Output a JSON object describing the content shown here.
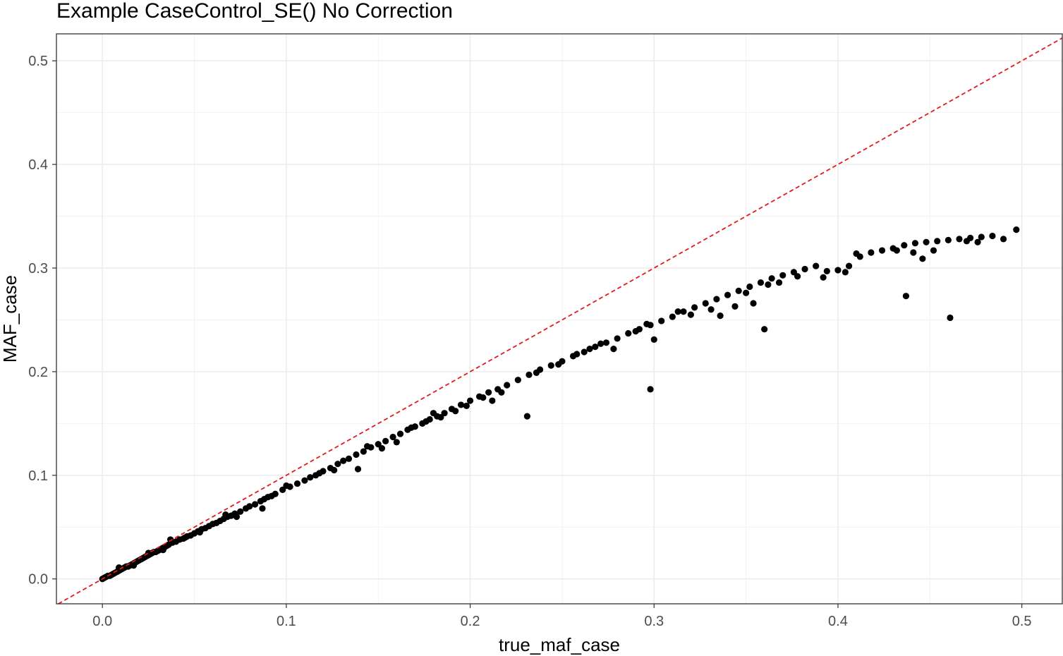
{
  "chart_data": {
    "type": "scatter",
    "title": "Example CaseControl_SE() No Correction",
    "xlabel": "true_maf_case",
    "ylabel": "MAF_case",
    "xlim": [
      -0.025,
      0.522
    ],
    "ylim": [
      -0.024,
      0.526
    ],
    "x_ticks": [
      0.0,
      0.1,
      0.2,
      0.3,
      0.4,
      0.5
    ],
    "x_tick_labels": [
      "0.0",
      "0.1",
      "0.2",
      "0.3",
      "0.4",
      "0.5"
    ],
    "y_ticks": [
      0.0,
      0.1,
      0.2,
      0.3,
      0.4,
      0.5
    ],
    "y_tick_labels": [
      "0.0",
      "0.1",
      "0.2",
      "0.3",
      "0.4",
      "0.5"
    ],
    "grid": true,
    "theme": "bw",
    "reference_line": {
      "type": "identity",
      "slope": 1,
      "intercept": 0,
      "style": "dashed",
      "color": "#e41a1c"
    },
    "point_color": "#000000",
    "points": [
      [
        0.0,
        0.0
      ],
      [
        0.001,
        0.001
      ],
      [
        0.002,
        0.002
      ],
      [
        0.003,
        0.003
      ],
      [
        0.004,
        0.003
      ],
      [
        0.005,
        0.004
      ],
      [
        0.006,
        0.005
      ],
      [
        0.007,
        0.006
      ],
      [
        0.008,
        0.007
      ],
      [
        0.009,
        0.008
      ],
      [
        0.01,
        0.009
      ],
      [
        0.011,
        0.01
      ],
      [
        0.012,
        0.011
      ],
      [
        0.013,
        0.012
      ],
      [
        0.014,
        0.012
      ],
      [
        0.015,
        0.013
      ],
      [
        0.016,
        0.014
      ],
      [
        0.017,
        0.015
      ],
      [
        0.018,
        0.016
      ],
      [
        0.019,
        0.017
      ],
      [
        0.02,
        0.018
      ],
      [
        0.021,
        0.019
      ],
      [
        0.022,
        0.02
      ],
      [
        0.023,
        0.021
      ],
      [
        0.024,
        0.022
      ],
      [
        0.025,
        0.023
      ],
      [
        0.026,
        0.024
      ],
      [
        0.027,
        0.025
      ],
      [
        0.028,
        0.026
      ],
      [
        0.029,
        0.026
      ],
      [
        0.03,
        0.027
      ],
      [
        0.031,
        0.028
      ],
      [
        0.032,
        0.029
      ],
      [
        0.033,
        0.03
      ],
      [
        0.034,
        0.031
      ],
      [
        0.035,
        0.032
      ],
      [
        0.036,
        0.033
      ],
      [
        0.038,
        0.035
      ],
      [
        0.04,
        0.036
      ],
      [
        0.042,
        0.038
      ],
      [
        0.044,
        0.039
      ],
      [
        0.046,
        0.041
      ],
      [
        0.048,
        0.042
      ],
      [
        0.05,
        0.044
      ],
      [
        0.052,
        0.046
      ],
      [
        0.054,
        0.048
      ],
      [
        0.056,
        0.049
      ],
      [
        0.058,
        0.051
      ],
      [
        0.06,
        0.053
      ],
      [
        0.062,
        0.054
      ],
      [
        0.064,
        0.056
      ],
      [
        0.066,
        0.058
      ],
      [
        0.068,
        0.06
      ],
      [
        0.07,
        0.061
      ],
      [
        0.072,
        0.063
      ],
      [
        0.075,
        0.065
      ],
      [
        0.078,
        0.068
      ],
      [
        0.08,
        0.07
      ],
      [
        0.083,
        0.072
      ],
      [
        0.086,
        0.075
      ],
      [
        0.088,
        0.077
      ],
      [
        0.09,
        0.079
      ],
      [
        0.094,
        0.082
      ],
      [
        0.098,
        0.086
      ],
      [
        0.102,
        0.089
      ],
      [
        0.106,
        0.092
      ],
      [
        0.11,
        0.095
      ],
      [
        0.113,
        0.098
      ],
      [
        0.116,
        0.1
      ],
      [
        0.12,
        0.104
      ],
      [
        0.124,
        0.107
      ],
      [
        0.128,
        0.111
      ],
      [
        0.131,
        0.114
      ],
      [
        0.134,
        0.116
      ],
      [
        0.138,
        0.12
      ],
      [
        0.142,
        0.123
      ],
      [
        0.146,
        0.127
      ],
      [
        0.15,
        0.13
      ],
      [
        0.154,
        0.133
      ],
      [
        0.158,
        0.137
      ],
      [
        0.162,
        0.14
      ],
      [
        0.166,
        0.144
      ],
      [
        0.17,
        0.147
      ],
      [
        0.174,
        0.15
      ],
      [
        0.178,
        0.154
      ],
      [
        0.182,
        0.157
      ],
      [
        0.186,
        0.16
      ],
      [
        0.19,
        0.164
      ],
      [
        0.195,
        0.168
      ],
      [
        0.2,
        0.172
      ],
      [
        0.205,
        0.176
      ],
      [
        0.21,
        0.18
      ],
      [
        0.215,
        0.183
      ],
      [
        0.22,
        0.187
      ],
      [
        0.226,
        0.192
      ],
      [
        0.232,
        0.197
      ],
      [
        0.238,
        0.202
      ],
      [
        0.244,
        0.206
      ],
      [
        0.25,
        0.21
      ],
      [
        0.256,
        0.215
      ],
      [
        0.262,
        0.219
      ],
      [
        0.268,
        0.224
      ],
      [
        0.274,
        0.228
      ],
      [
        0.28,
        0.232
      ],
      [
        0.286,
        0.237
      ],
      [
        0.292,
        0.241
      ],
      [
        0.298,
        0.245
      ],
      [
        0.304,
        0.249
      ],
      [
        0.31,
        0.253
      ],
      [
        0.316,
        0.258
      ],
      [
        0.322,
        0.262
      ],
      [
        0.328,
        0.266
      ],
      [
        0.334,
        0.27
      ],
      [
        0.34,
        0.274
      ],
      [
        0.346,
        0.278
      ],
      [
        0.352,
        0.282
      ],
      [
        0.358,
        0.286
      ],
      [
        0.364,
        0.29
      ],
      [
        0.37,
        0.293
      ],
      [
        0.376,
        0.296
      ],
      [
        0.382,
        0.299
      ],
      [
        0.388,
        0.302
      ],
      [
        0.394,
        0.297
      ],
      [
        0.4,
        0.298
      ],
      [
        0.406,
        0.302
      ],
      [
        0.412,
        0.311
      ],
      [
        0.418,
        0.315
      ],
      [
        0.424,
        0.317
      ],
      [
        0.43,
        0.319
      ],
      [
        0.436,
        0.322
      ],
      [
        0.442,
        0.324
      ],
      [
        0.448,
        0.325
      ],
      [
        0.454,
        0.326
      ],
      [
        0.46,
        0.327
      ],
      [
        0.466,
        0.328
      ],
      [
        0.472,
        0.329
      ],
      [
        0.478,
        0.33
      ],
      [
        0.484,
        0.331
      ],
      [
        0.49,
        0.328
      ],
      [
        0.497,
        0.337
      ],
      [
        0.009,
        0.011
      ],
      [
        0.017,
        0.013
      ],
      [
        0.025,
        0.025
      ],
      [
        0.033,
        0.028
      ],
      [
        0.037,
        0.038
      ],
      [
        0.045,
        0.04
      ],
      [
        0.053,
        0.045
      ],
      [
        0.067,
        0.062
      ],
      [
        0.073,
        0.06
      ],
      [
        0.087,
        0.068
      ],
      [
        0.092,
        0.08
      ],
      [
        0.1,
        0.09
      ],
      [
        0.118,
        0.102
      ],
      [
        0.126,
        0.105
      ],
      [
        0.139,
        0.106
      ],
      [
        0.144,
        0.128
      ],
      [
        0.152,
        0.126
      ],
      [
        0.16,
        0.132
      ],
      [
        0.168,
        0.146
      ],
      [
        0.176,
        0.152
      ],
      [
        0.18,
        0.16
      ],
      [
        0.184,
        0.156
      ],
      [
        0.192,
        0.162
      ],
      [
        0.198,
        0.167
      ],
      [
        0.207,
        0.175
      ],
      [
        0.212,
        0.172
      ],
      [
        0.217,
        0.18
      ],
      [
        0.231,
        0.157
      ],
      [
        0.236,
        0.199
      ],
      [
        0.248,
        0.207
      ],
      [
        0.258,
        0.217
      ],
      [
        0.265,
        0.222
      ],
      [
        0.271,
        0.227
      ],
      [
        0.278,
        0.222
      ],
      [
        0.29,
        0.239
      ],
      [
        0.296,
        0.246
      ],
      [
        0.298,
        0.183
      ],
      [
        0.3,
        0.231
      ],
      [
        0.313,
        0.258
      ],
      [
        0.32,
        0.255
      ],
      [
        0.331,
        0.26
      ],
      [
        0.336,
        0.254
      ],
      [
        0.344,
        0.263
      ],
      [
        0.35,
        0.276
      ],
      [
        0.354,
        0.266
      ],
      [
        0.36,
        0.241
      ],
      [
        0.362,
        0.284
      ],
      [
        0.368,
        0.286
      ],
      [
        0.378,
        0.292
      ],
      [
        0.392,
        0.291
      ],
      [
        0.404,
        0.296
      ],
      [
        0.41,
        0.314
      ],
      [
        0.432,
        0.317
      ],
      [
        0.437,
        0.273
      ],
      [
        0.441,
        0.315
      ],
      [
        0.446,
        0.309
      ],
      [
        0.452,
        0.317
      ],
      [
        0.461,
        0.252
      ],
      [
        0.47,
        0.326
      ],
      [
        0.476,
        0.325
      ]
    ]
  }
}
